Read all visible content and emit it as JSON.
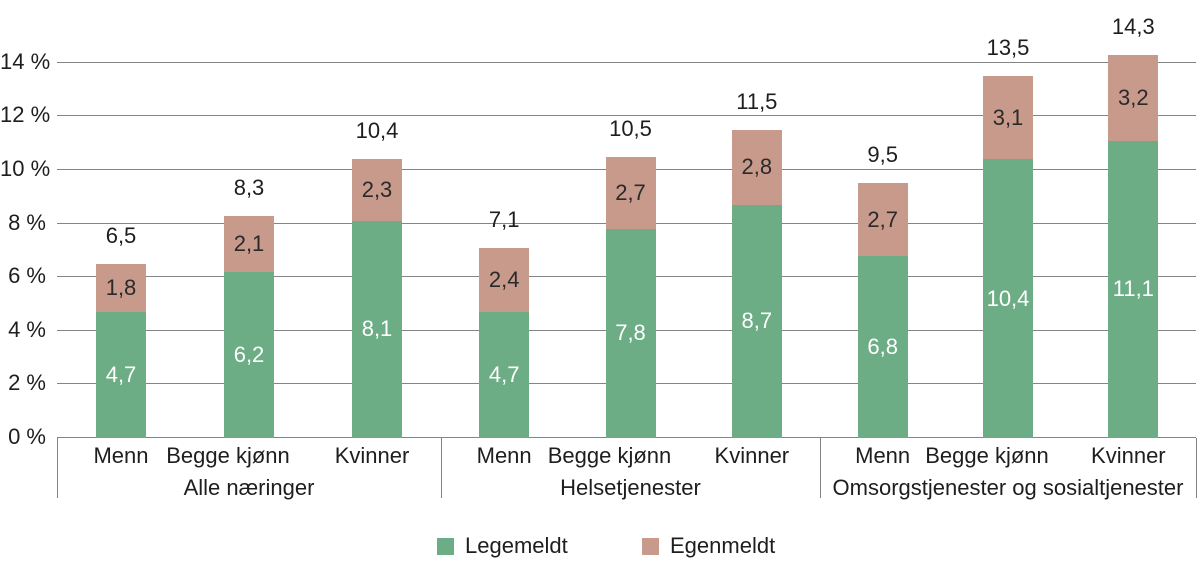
{
  "colors": {
    "legemeldt": "#6CAD85",
    "egenmeldt": "#C79A8C",
    "gridline": "#848484",
    "text": "#1e1e1e",
    "label_on_green": "#ffffff",
    "label_on_rose": "#2a2a2a",
    "background": "#ffffff"
  },
  "chart_data": {
    "type": "bar",
    "subtype": "stacked-vertical",
    "title": "",
    "xlabel": "",
    "ylabel": "",
    "unit": "%",
    "ylim": [
      0,
      15
    ],
    "grid": true,
    "y_ticks": [
      {
        "value": 0,
        "label": "0 %"
      },
      {
        "value": 2,
        "label": "2 %"
      },
      {
        "value": 4,
        "label": "4 %"
      },
      {
        "value": 6,
        "label": "6 %"
      },
      {
        "value": 8,
        "label": "8 %"
      },
      {
        "value": 10,
        "label": "10 %"
      },
      {
        "value": 12,
        "label": "12 %"
      },
      {
        "value": 14,
        "label": "14 %"
      }
    ],
    "series_names": [
      "Legemeldt",
      "Egenmeldt"
    ],
    "groups": [
      {
        "label": "Alle næringer",
        "bars": [
          {
            "category": "Menn",
            "legemeldt": 4.7,
            "egenmeldt": 1.8,
            "total": 6.5,
            "labels": {
              "legemeldt": "4,7",
              "egenmeldt": "1,8",
              "total": "6,5"
            }
          },
          {
            "category": "Begge kjønn",
            "legemeldt": 6.2,
            "egenmeldt": 2.1,
            "total": 8.3,
            "labels": {
              "legemeldt": "6,2",
              "egenmeldt": "2,1",
              "total": "8,3"
            }
          },
          {
            "category": "Kvinner",
            "legemeldt": 8.1,
            "egenmeldt": 2.3,
            "total": 10.4,
            "labels": {
              "legemeldt": "8,1",
              "egenmeldt": "2,3",
              "total": "10,4"
            }
          }
        ]
      },
      {
        "label": "Helsetjenester",
        "bars": [
          {
            "category": "Menn",
            "legemeldt": 4.7,
            "egenmeldt": 2.4,
            "total": 7.1,
            "labels": {
              "legemeldt": "4,7",
              "egenmeldt": "2,4",
              "total": "7,1"
            }
          },
          {
            "category": "Begge kjønn",
            "legemeldt": 7.8,
            "egenmeldt": 2.7,
            "total": 10.5,
            "labels": {
              "legemeldt": "7,8",
              "egenmeldt": "2,7",
              "total": "10,5"
            }
          },
          {
            "category": "Kvinner",
            "legemeldt": 8.7,
            "egenmeldt": 2.8,
            "total": 11.5,
            "labels": {
              "legemeldt": "8,7",
              "egenmeldt": "2,8",
              "total": "11,5"
            }
          }
        ]
      },
      {
        "label": "Omsorgstjenester og sosialtjenester",
        "bars": [
          {
            "category": "Menn",
            "legemeldt": 6.8,
            "egenmeldt": 2.7,
            "total": 9.5,
            "labels": {
              "legemeldt": "6,8",
              "egenmeldt": "2,7",
              "total": "9,5"
            }
          },
          {
            "category": "Begge kjønn",
            "legemeldt": 10.4,
            "egenmeldt": 3.1,
            "total": 13.5,
            "labels": {
              "legemeldt": "10,4",
              "egenmeldt": "3,1",
              "total": "13,5"
            }
          },
          {
            "category": "Kvinner",
            "legemeldt": 11.1,
            "egenmeldt": 3.2,
            "total": 14.3,
            "labels": {
              "legemeldt": "11,1",
              "egenmeldt": "3,2",
              "total": "14,3"
            }
          }
        ]
      }
    ],
    "legend": {
      "position": "bottom",
      "items": [
        {
          "label": "Legemeldt",
          "color": "#6CAD85"
        },
        {
          "label": "Egenmeldt",
          "color": "#C79A8C"
        }
      ]
    }
  }
}
